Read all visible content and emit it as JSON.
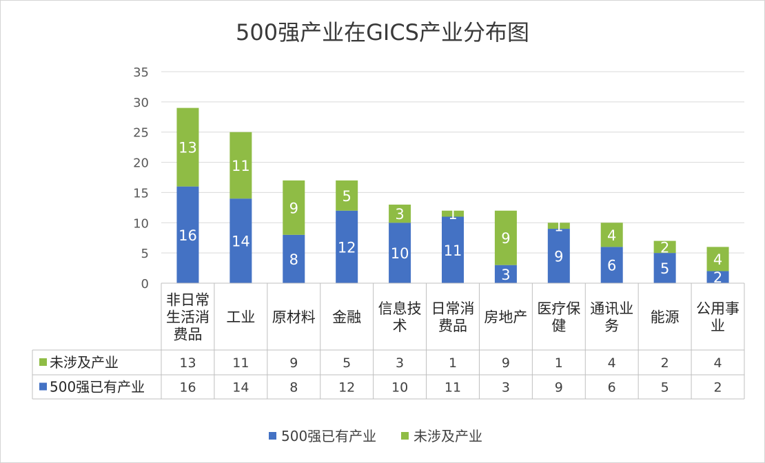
{
  "chart_data": {
    "type": "bar",
    "stacked": true,
    "title": "500强产业在GICS产业分布图",
    "categories": [
      [
        "非日常",
        "生活消",
        "费品"
      ],
      [
        "工业"
      ],
      [
        "原材料"
      ],
      [
        "金融"
      ],
      [
        "信息技",
        "术"
      ],
      [
        "日常消",
        "费品"
      ],
      [
        "房地产"
      ],
      [
        "医疗保",
        "健"
      ],
      [
        "通讯业",
        "务"
      ],
      [
        "能源"
      ],
      [
        "公用事",
        "业"
      ]
    ],
    "series": [
      {
        "name": "500强已有产业",
        "color": "#4472c4",
        "values": [
          16,
          14,
          8,
          12,
          10,
          11,
          3,
          9,
          6,
          5,
          2
        ]
      },
      {
        "name": "未涉及产业",
        "color": "#8fbc45",
        "values": [
          13,
          11,
          9,
          5,
          3,
          1,
          9,
          1,
          4,
          2,
          4
        ]
      }
    ],
    "table_row_order": [
      1,
      0
    ],
    "ylim": [
      0,
      35
    ],
    "yticks": [
      0,
      5,
      10,
      15,
      20,
      25,
      30,
      35
    ],
    "grid": true,
    "legend_position": "bottom",
    "data_table": true
  }
}
